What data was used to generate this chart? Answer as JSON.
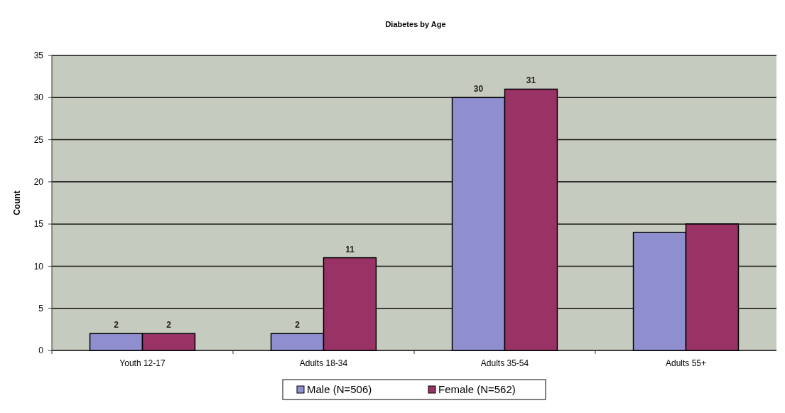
{
  "chart_data": {
    "type": "bar",
    "title": "Diabetes by Age",
    "ylabel": "Count",
    "categories": [
      "Youth 12-17",
      "Adults 18-34",
      "Adults 35-54",
      "Adults 55+"
    ],
    "series": [
      {
        "name": "Male (N=506)",
        "color": "#8f8fcf",
        "values": [
          2,
          2,
          30,
          14
        ],
        "value_labels": [
          "2",
          "2",
          "30",
          null
        ]
      },
      {
        "name": "Female (N=562)",
        "color": "#993366",
        "values": [
          2,
          11,
          31,
          15
        ],
        "value_labels": [
          "2",
          "11",
          "31",
          null
        ]
      }
    ],
    "ylim": [
      0,
      35
    ],
    "yticks": [
      0,
      5,
      10,
      15,
      20,
      25,
      30,
      35
    ],
    "grid": "y",
    "legend": "bottom"
  }
}
